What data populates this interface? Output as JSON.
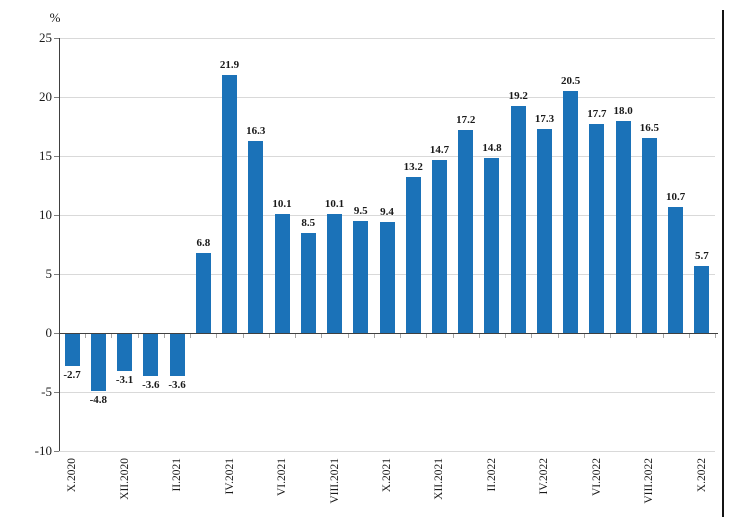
{
  "chart_data": {
    "type": "bar",
    "title": "",
    "unit_label": "%",
    "ylabel": "%",
    "xlabel": "",
    "ylim": [
      -10,
      25
    ],
    "y_ticks": [
      25,
      20,
      15,
      10,
      5,
      0,
      -5,
      -10
    ],
    "grid": true,
    "legend_position": "none",
    "bars": [
      {
        "tick": "X.2020",
        "value": -2.7,
        "label": "-2.7"
      },
      {
        "tick": "",
        "value": -4.8,
        "label": "-4.8"
      },
      {
        "tick": "XII.2020",
        "value": -3.1,
        "label": "-3.1"
      },
      {
        "tick": "",
        "value": -3.6,
        "label": "-3.6"
      },
      {
        "tick": "II.2021",
        "value": -3.6,
        "label": "-3.6"
      },
      {
        "tick": "",
        "value": 6.8,
        "label": "6.8"
      },
      {
        "tick": "IV.2021",
        "value": 21.9,
        "label": "21.9"
      },
      {
        "tick": "",
        "value": 16.3,
        "label": "16.3"
      },
      {
        "tick": "VI.2021",
        "value": 10.1,
        "label": "10.1"
      },
      {
        "tick": "",
        "value": 8.5,
        "label": "8.5"
      },
      {
        "tick": "VIII.2021",
        "value": 10.1,
        "label": "10.1"
      },
      {
        "tick": "",
        "value": 9.5,
        "label": "9.5"
      },
      {
        "tick": "X.2021",
        "value": 9.4,
        "label": "9.4"
      },
      {
        "tick": "",
        "value": 13.2,
        "label": "13.2"
      },
      {
        "tick": "XII.2021",
        "value": 14.7,
        "label": "14.7"
      },
      {
        "tick": "",
        "value": 17.2,
        "label": "17.2"
      },
      {
        "tick": "II.2022",
        "value": 14.8,
        "label": "14.8"
      },
      {
        "tick": "",
        "value": 19.2,
        "label": "19.2"
      },
      {
        "tick": "IV.2022",
        "value": 17.3,
        "label": "17.3"
      },
      {
        "tick": "",
        "value": 20.5,
        "label": "20.5"
      },
      {
        "tick": "VI.2022",
        "value": 17.7,
        "label": "17.7"
      },
      {
        "tick": "",
        "value": 18.0,
        "label": "18.0"
      },
      {
        "tick": "VIII.2022",
        "value": 16.5,
        "label": "16.5"
      },
      {
        "tick": "",
        "value": 10.7,
        "label": "10.7"
      },
      {
        "tick": "X.2022",
        "value": 5.7,
        "label": "5.7"
      }
    ],
    "colors": {
      "bar": "#1b72b8",
      "gridline": "#d9d9d9",
      "axis": "#404040",
      "y_tick": "#7f7f7f",
      "x_tick": "#a6a6a6",
      "text": "#1a1a1a",
      "frame_line": "#141414"
    }
  }
}
